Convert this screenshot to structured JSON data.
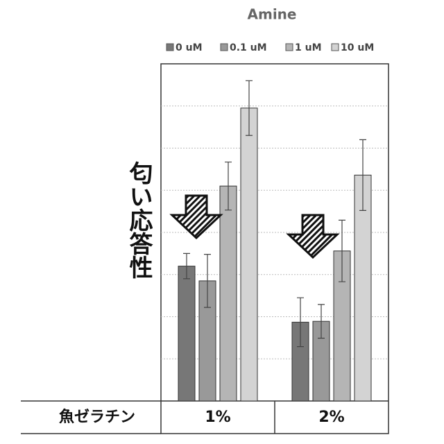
{
  "chart_data": {
    "type": "bar",
    "title": "Amine",
    "ylabel": "匂い応答性",
    "row_label": "魚ゼラチン",
    "categories": [
      "1%",
      "2%"
    ],
    "series": [
      {
        "name": "0 uM",
        "color": "#777777",
        "values": [
          3.2,
          1.87
        ],
        "errors": [
          0.3,
          0.58
        ]
      },
      {
        "name": "0.1 uM",
        "color": "#999999",
        "values": [
          2.85,
          1.89
        ],
        "errors": [
          0.63,
          0.4
        ]
      },
      {
        "name": "1 uM",
        "color": "#b5b5b5",
        "values": [
          5.1,
          3.56
        ],
        "errors": [
          0.57,
          0.73
        ]
      },
      {
        "name": "10 uM",
        "color": "#d3d3d3",
        "values": [
          6.95,
          5.36
        ],
        "errors": [
          0.65,
          0.84
        ]
      }
    ],
    "ylim": [
      0,
      8
    ],
    "yticks": [
      1,
      2,
      3,
      4,
      5,
      6,
      7
    ],
    "grid": true
  }
}
